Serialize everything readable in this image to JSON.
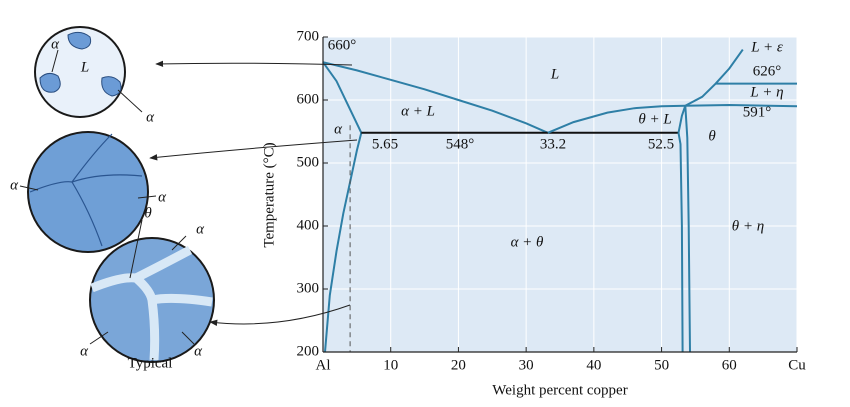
{
  "chart_data": {
    "type": "phase-diagram",
    "x_label": "Weight percent copper",
    "y_label": "Temperature (°C)",
    "xlim": [
      0,
      70
    ],
    "ylim": [
      200,
      700
    ],
    "xticks": [
      {
        "value": 0,
        "label": "Al"
      },
      10,
      20,
      30,
      40,
      50,
      60,
      {
        "value": 70,
        "label": "Cu"
      }
    ],
    "yticks": [
      200,
      300,
      400,
      500,
      600,
      700
    ],
    "grid": true,
    "color": "#2e7fa6",
    "boundaries": [
      {
        "x": [
          0,
          5,
          10,
          15,
          20,
          25,
          30,
          33.2
        ],
        "y": [
          660,
          647,
          632,
          617,
          600,
          583,
          563,
          548
        ]
      },
      {
        "x": [
          0,
          2,
          4,
          5.65
        ],
        "y": [
          660,
          630,
          585,
          548
        ]
      },
      {
        "x": [
          5.65,
          5,
          4,
          3,
          2,
          1,
          0.3
        ],
        "y": [
          548,
          520,
          470,
          420,
          360,
          290,
          200
        ]
      },
      {
        "x": [
          5.65,
          52.5
        ],
        "y": [
          548,
          548
        ]
      },
      {
        "x": [
          33.2,
          37,
          42,
          46,
          50,
          53.5
        ],
        "y": [
          548,
          565,
          580,
          587,
          590,
          591
        ]
      },
      {
        "x": [
          52.5,
          52.8,
          53,
          53.1
        ],
        "y": [
          548,
          530,
          400,
          200
        ]
      },
      {
        "x": [
          53.5,
          53.8,
          54,
          54.2
        ],
        "y": [
          591,
          540,
          400,
          200
        ]
      },
      {
        "x": [
          52.5,
          53,
          53.5
        ],
        "y": [
          548,
          575,
          591
        ]
      },
      {
        "x": [
          53.5,
          60,
          70
        ],
        "y": [
          591,
          592,
          590
        ]
      },
      {
        "x": [
          58,
          70
        ],
        "y": [
          626,
          626
        ]
      },
      {
        "x": [
          53.5,
          56,
          58,
          60,
          62
        ],
        "y": [
          591,
          605,
          626,
          650,
          680
        ]
      },
      {
        "x": [
          4,
          4
        ],
        "y": [
          560,
          200
        ],
        "style": "dashed"
      }
    ],
    "annotations": [
      "660°",
      "L",
      "α + L",
      "α",
      "5.65",
      "548°",
      "33.2",
      "52.5",
      "θ + L",
      "θ",
      "α + θ",
      "θ + η",
      "L + ε",
      "626°",
      "L + η",
      "591°"
    ]
  },
  "microstructures": {
    "labels": [
      "α",
      "L",
      "α",
      "α",
      "α",
      "θ",
      "α",
      "α",
      "α"
    ],
    "caption": "Typical"
  }
}
